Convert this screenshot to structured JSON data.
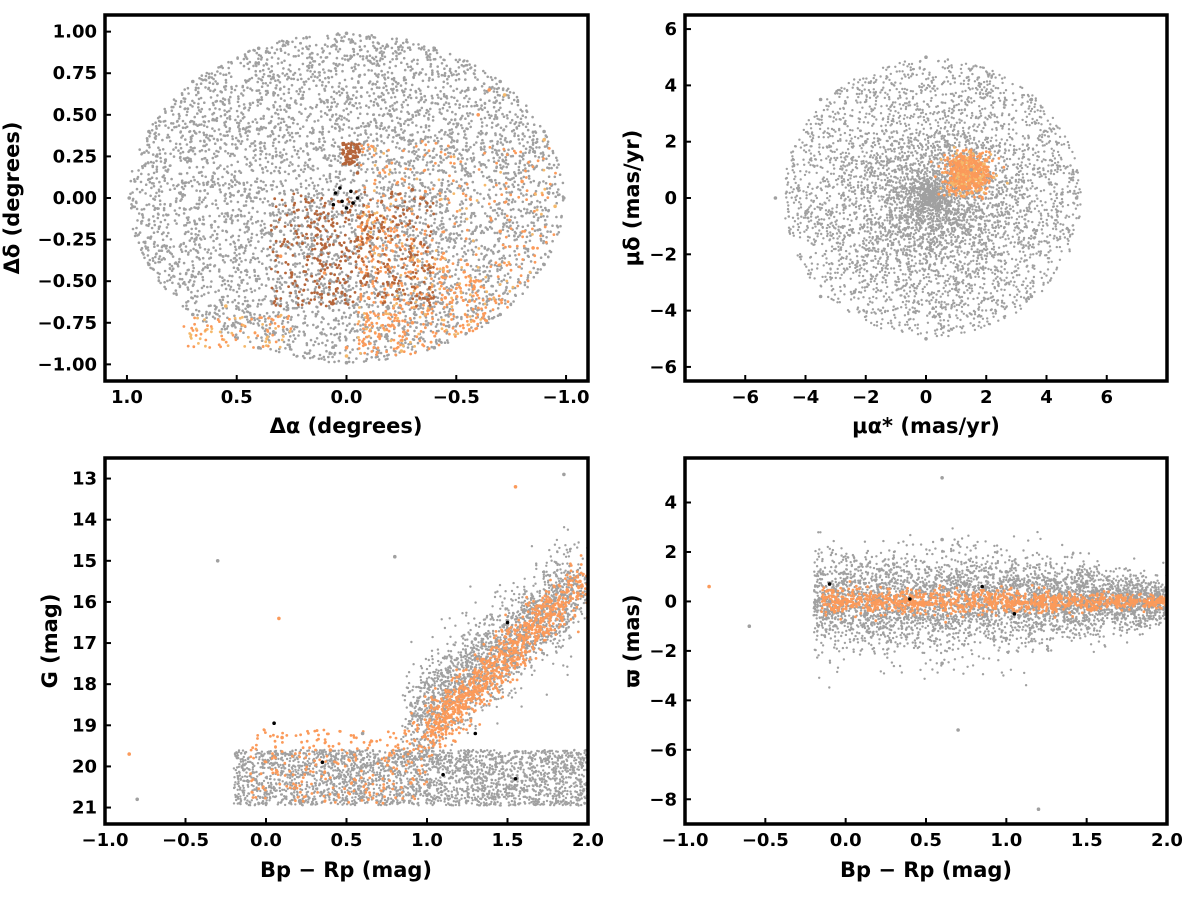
{
  "colors": {
    "field": "#a0a0a0",
    "members_orange": "#fb9a5a",
    "members_light": "#f5b96b",
    "members_brown": "#b5653a",
    "core_black": "#000000"
  },
  "chart_data": [
    {
      "id": "sky",
      "type": "scatter",
      "xlabel": "Δα (degrees)",
      "ylabel": "Δδ (degrees)",
      "xlim": [
        1.1,
        -1.1
      ],
      "ylim": [
        -1.1,
        1.1
      ],
      "xticks": [
        1.0,
        0.5,
        0.0,
        -0.5,
        -1.0
      ],
      "xtick_labels": [
        "1.0",
        "0.5",
        "0.0",
        "−0.5",
        "−1.0"
      ],
      "yticks": [
        1.0,
        0.75,
        0.5,
        0.25,
        0.0,
        -0.25,
        -0.5,
        -0.75,
        -1.0
      ],
      "ytick_labels": [
        "1.00",
        "0.75",
        "0.50",
        "0.25",
        "0.00",
        "−0.25",
        "−0.50",
        "−0.75",
        "−1.00"
      ],
      "series": [
        {
          "points": [
            [
              0.99,
              0.0
            ],
            [
              0.9,
              0.4
            ],
            [
              0.7,
              0.7
            ],
            [
              0.4,
              0.9
            ],
            [
              0.0,
              0.99
            ],
            [
              -0.4,
              0.9
            ],
            [
              -0.7,
              0.7
            ],
            [
              -0.9,
              0.4
            ],
            [
              -0.99,
              0.0
            ],
            [
              -0.9,
              -0.4
            ],
            [
              -0.7,
              -0.7
            ],
            [
              -0.4,
              -0.9
            ],
            [
              0.0,
              -0.99
            ],
            [
              0.4,
              -0.9
            ],
            [
              0.7,
              -0.7
            ],
            [
              0.9,
              -0.4
            ],
            [
              0.5,
              0.3
            ],
            [
              0.3,
              -0.2
            ],
            [
              -0.2,
              0.5
            ],
            [
              0.2,
              0.6
            ]
          ]
        },
        {
          "points": [
            [
              -0.55,
              -0.4
            ],
            [
              -0.7,
              -0.2
            ],
            [
              -0.8,
              0.1
            ],
            [
              -0.6,
              0.5
            ],
            [
              -0.65,
              0.65
            ],
            [
              -0.3,
              -0.75
            ],
            [
              -0.45,
              -0.6
            ],
            [
              -0.1,
              -0.6
            ],
            [
              0.1,
              -0.45
            ],
            [
              0.3,
              -0.35
            ],
            [
              0.0,
              -0.9
            ],
            [
              -0.85,
              -0.3
            ]
          ]
        },
        {
          "points": [
            [
              -0.95,
              -0.05
            ],
            [
              -0.9,
              0.35
            ],
            [
              -0.72,
              0.62
            ],
            [
              0.55,
              -0.65
            ],
            [
              0.0,
              -0.95
            ],
            [
              -0.25,
              -0.92
            ]
          ]
        },
        {
          "points": [
            [
              0.0,
              0.3
            ],
            [
              -0.05,
              0.15
            ],
            [
              -0.3,
              0.05
            ],
            [
              -0.35,
              0.0
            ],
            [
              -0.15,
              -0.2
            ],
            [
              0.1,
              -0.3
            ],
            [
              0.25,
              -0.45
            ],
            [
              -0.05,
              -0.25
            ]
          ]
        },
        {
          "points": [
            [
              0.05,
              0.03
            ],
            [
              0.02,
              -0.02
            ],
            [
              -0.02,
              0.04
            ],
            [
              0.0,
              -0.06
            ],
            [
              -0.05,
              0.0
            ],
            [
              0.06,
              -0.04
            ],
            [
              0.03,
              0.06
            ],
            [
              -0.03,
              -0.03
            ]
          ]
        }
      ]
    },
    {
      "id": "proper-motion",
      "type": "scatter",
      "xlabel": "μα* (mas/yr)",
      "ylabel": "μδ (mas/yr)",
      "xlim": [
        -8,
        8
      ],
      "ylim": [
        -6.5,
        6.5
      ],
      "xticks": [
        -6,
        -4,
        -2,
        0,
        2,
        4,
        6
      ],
      "xtick_labels": [
        "−6",
        "−4",
        "−2",
        "0",
        "2",
        "4",
        "6"
      ],
      "yticks": [
        6,
        4,
        2,
        0,
        -2,
        -4,
        -6
      ],
      "ytick_labels": [
        "6",
        "4",
        "2",
        "0",
        "−2",
        "−4",
        "−6"
      ],
      "series": [
        {
          "points": [
            [
              0,
              5
            ],
            [
              3.5,
              3.5
            ],
            [
              5,
              0
            ],
            [
              3.5,
              -3.5
            ],
            [
              0,
              -5
            ],
            [
              -3.5,
              -3.5
            ],
            [
              -5,
              0
            ],
            [
              -3.5,
              3.5
            ],
            [
              1.5,
              1.0
            ],
            [
              -1.0,
              -1.0
            ],
            [
              2.5,
              -2.0
            ],
            [
              -2.0,
              2.0
            ]
          ]
        },
        {
          "points": [
            [
              1.4,
              0.9
            ],
            [
              1.0,
              0.6
            ],
            [
              1.8,
              1.2
            ],
            [
              1.2,
              0.4
            ],
            [
              1.6,
              0.5
            ],
            [
              1.1,
              1.3
            ]
          ]
        }
      ]
    },
    {
      "id": "cmd",
      "type": "scatter",
      "xlabel": "Bp − Rp (mag)",
      "ylabel": "G (mag)",
      "xlim": [
        -1.0,
        2.0
      ],
      "ylim": [
        21.4,
        12.5
      ],
      "xticks": [
        -1.0,
        -0.5,
        0.0,
        0.5,
        1.0,
        1.5,
        2.0
      ],
      "xtick_labels": [
        "−1.0",
        "−0.5",
        "0.0",
        "0.5",
        "1.0",
        "1.5",
        "2.0"
      ],
      "yticks": [
        21,
        20,
        19,
        18,
        17,
        16,
        15,
        14,
        13
      ],
      "ytick_labels": [
        "21",
        "20",
        "19",
        "18",
        "17",
        "16",
        "15",
        "14",
        "13"
      ],
      "series": [
        {
          "points": [
            [
              -0.8,
              20.8
            ],
            [
              0.0,
              20.9
            ],
            [
              0.5,
              20.8
            ],
            [
              1.0,
              20.7
            ],
            [
              1.5,
              20.5
            ],
            [
              1.9,
              20.0
            ],
            [
              0.9,
              18.5
            ],
            [
              1.1,
              17.8
            ],
            [
              1.3,
              16.9
            ],
            [
              1.6,
              16.2
            ],
            [
              1.9,
              15.7
            ],
            [
              0.6,
              19.2
            ],
            [
              1.85,
              12.9
            ],
            [
              -0.3,
              15.0
            ],
            [
              0.8,
              14.9
            ]
          ]
        },
        {
          "points": [
            [
              1.15,
              18.8
            ],
            [
              1.2,
              18.3
            ],
            [
              1.35,
              17.4
            ],
            [
              1.5,
              16.7
            ],
            [
              1.7,
              16.1
            ],
            [
              1.95,
              15.5
            ],
            [
              0.1,
              19.3
            ],
            [
              0.4,
              19.6
            ],
            [
              0.9,
              20.4
            ],
            [
              -0.85,
              19.7
            ],
            [
              0.08,
              16.4
            ],
            [
              1.55,
              13.2
            ]
          ]
        },
        {
          "points": [
            [
              1.1,
              20.2
            ],
            [
              0.35,
              19.9
            ],
            [
              0.05,
              18.95
            ],
            [
              1.55,
              20.3
            ],
            [
              1.3,
              19.2
            ],
            [
              1.5,
              16.5
            ]
          ]
        }
      ]
    },
    {
      "id": "parallax",
      "type": "scatter",
      "xlabel": "Bp − Rp (mag)",
      "ylabel": "ϖ (mas)",
      "xlim": [
        -1.0,
        2.0
      ],
      "ylim": [
        -9.0,
        5.8
      ],
      "xticks": [
        -1.0,
        -0.5,
        0.0,
        0.5,
        1.0,
        1.5,
        2.0
      ],
      "xtick_labels": [
        "−1.0",
        "−0.5",
        "0.0",
        "0.5",
        "1.0",
        "1.5",
        "2.0"
      ],
      "yticks": [
        4,
        2,
        0,
        -2,
        -4,
        -6,
        -8
      ],
      "ytick_labels": [
        "4",
        "2",
        "0",
        "−2",
        "−4",
        "−6",
        "−8"
      ],
      "series": [
        {
          "points": [
            [
              -0.1,
              0.0
            ],
            [
              0.3,
              1.5
            ],
            [
              0.6,
              2.5
            ],
            [
              0.6,
              -2.5
            ],
            [
              1.0,
              1.2
            ],
            [
              1.0,
              -1.5
            ],
            [
              1.5,
              0.8
            ],
            [
              1.8,
              0.2
            ],
            [
              0.6,
              5.0
            ],
            [
              0.7,
              -5.2
            ],
            [
              1.2,
              -8.4
            ],
            [
              -0.6,
              -1.0
            ]
          ]
        },
        {
          "points": [
            [
              0.2,
              0.0
            ],
            [
              0.6,
              0.1
            ],
            [
              1.0,
              0.0
            ],
            [
              1.3,
              0.0
            ],
            [
              1.7,
              0.0
            ],
            [
              -0.85,
              0.6
            ]
          ]
        },
        {
          "points": [
            [
              -0.1,
              0.7
            ],
            [
              0.4,
              0.1
            ],
            [
              0.85,
              0.6
            ],
            [
              1.05,
              -0.5
            ]
          ]
        }
      ]
    }
  ]
}
